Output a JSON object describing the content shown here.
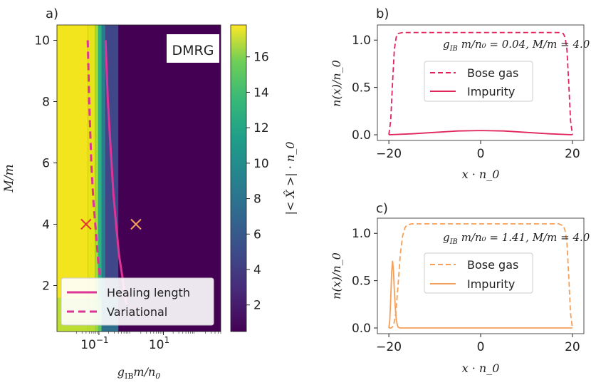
{
  "colors": {
    "pink": "#dd3497",
    "crimson": "#e0245c",
    "orange": "#f5a05a",
    "marker_red": "#e8333a",
    "marker_orange": "#f5a05a"
  },
  "chart_data": [
    {
      "id": "a",
      "type": "heatmap",
      "panel_label": "a)",
      "badge": "DMRG",
      "xlabel": "g_IB m/n_0",
      "xlabel_main": "g",
      "xlabel_sub": "IB",
      "xlabel_rest": "m/n",
      "xlabel_rest_sub": "0",
      "ylabel": "M/m",
      "xscale": "log",
      "xlim": [
        0.005,
        600
      ],
      "ylim": [
        0.5,
        10.5
      ],
      "xticks": [
        {
          "value": 0.1,
          "base": "10",
          "exp": "−1"
        },
        {
          "value": 10,
          "base": "10",
          "exp": "1"
        }
      ],
      "yticks": [
        {
          "value": 2,
          "label": "2"
        },
        {
          "value": 4,
          "label": "4"
        },
        {
          "value": 6,
          "label": "6"
        },
        {
          "value": 8,
          "label": "8"
        },
        {
          "value": 10,
          "label": "10"
        }
      ],
      "colorbar": {
        "label": "|< X̂ >| · n_0",
        "range": [
          0.5,
          17.8
        ],
        "ticks": [
          {
            "value": 2,
            "label": "2"
          },
          {
            "value": 4,
            "label": "4"
          },
          {
            "value": 6,
            "label": "6"
          },
          {
            "value": 8,
            "label": "8"
          },
          {
            "value": 10,
            "label": "10"
          },
          {
            "value": 12,
            "label": "12"
          },
          {
            "value": 14,
            "label": "14"
          },
          {
            "value": 16,
            "label": "16"
          }
        ]
      },
      "series": [
        {
          "name": "Healing length",
          "style": "solid",
          "color": "#dd3497",
          "x": [
            0.16,
            0.19,
            0.23,
            0.28,
            0.34,
            0.42,
            0.55,
            0.7
          ],
          "y": [
            10.0,
            8.0,
            6.5,
            5.0,
            4.0,
            3.0,
            2.2,
            1.4
          ]
        },
        {
          "name": "Variational",
          "style": "dashed",
          "color": "#dd3497",
          "x": [
            0.045,
            0.05,
            0.058,
            0.068,
            0.08,
            0.095,
            0.11
          ],
          "y": [
            10.0,
            8.0,
            6.0,
            4.7,
            3.8,
            2.8,
            2.2
          ]
        }
      ],
      "markers": [
        {
          "x": 0.04,
          "y": 4.0,
          "color": "#e8333a",
          "symbol": "x"
        },
        {
          "x": 1.41,
          "y": 4.0,
          "color": "#f5a05a",
          "symbol": "x"
        }
      ]
    },
    {
      "id": "b",
      "type": "line",
      "panel_label": "b)",
      "annotation": "g_IB m/n_0 = 0.04, M/m = 4.0",
      "annotation_g": "0.04",
      "annotation_M": "4.0",
      "xlabel": "x · n_0",
      "ylabel": "n(x)/n_0",
      "xlim": [
        -22.5,
        22.5
      ],
      "ylim": [
        -0.06,
        1.16
      ],
      "xticks": [
        {
          "value": -20,
          "label": "−20"
        },
        {
          "value": 0,
          "label": "0"
        },
        {
          "value": 20,
          "label": "20"
        }
      ],
      "yticks": [
        {
          "value": 0,
          "label": "0.0"
        },
        {
          "value": 0.5,
          "label": "0.5"
        },
        {
          "value": 1.0,
          "label": "1.0"
        }
      ],
      "color": "#e0245c",
      "series": [
        {
          "name": "Bose gas",
          "style": "dashed",
          "x": [
            -20,
            -19.6,
            -19.2,
            -18.8,
            -18.4,
            -18,
            -17,
            -15,
            -10,
            0,
            10,
            15,
            17,
            18,
            18.4,
            18.8,
            19.2,
            19.6,
            20
          ],
          "y": [
            0,
            0.15,
            0.55,
            0.9,
            1.03,
            1.07,
            1.08,
            1.08,
            1.08,
            1.08,
            1.08,
            1.08,
            1.08,
            1.07,
            1.03,
            0.9,
            0.55,
            0.15,
            0
          ]
        },
        {
          "name": "Impurity",
          "style": "solid",
          "x": [
            -20,
            -15,
            -10,
            -5,
            0,
            5,
            10,
            15,
            20
          ],
          "y": [
            0.0,
            0.01,
            0.025,
            0.04,
            0.045,
            0.04,
            0.025,
            0.01,
            0.0
          ]
        }
      ]
    },
    {
      "id": "c",
      "type": "line",
      "panel_label": "c)",
      "annotation": "g_IB m/n_0 = 1.41, M/m = 4.0",
      "annotation_g": "1.41",
      "annotation_M": "4.0",
      "xlabel": "x · n_0",
      "ylabel": "n(x)/n_0",
      "xlim": [
        -22.5,
        22.5
      ],
      "ylim": [
        -0.06,
        1.16
      ],
      "xticks": [
        {
          "value": -20,
          "label": "−20"
        },
        {
          "value": 0,
          "label": "0"
        },
        {
          "value": 20,
          "label": "20"
        }
      ],
      "yticks": [
        {
          "value": 0,
          "label": "0.0"
        },
        {
          "value": 0.5,
          "label": "0.5"
        },
        {
          "value": 1.0,
          "label": "1.0"
        }
      ],
      "color": "#f5a05a",
      "series": [
        {
          "name": "Bose gas",
          "style": "dashed",
          "x": [
            -20,
            -19.5,
            -19,
            -18.5,
            -18,
            -17.5,
            -17,
            -16.5,
            -16,
            -15,
            -13,
            -10,
            0,
            10,
            15,
            17,
            18,
            18.4,
            18.8,
            19.2,
            19.6,
            20
          ],
          "y": [
            0,
            0,
            0.02,
            0.15,
            0.45,
            0.78,
            0.97,
            1.06,
            1.09,
            1.1,
            1.1,
            1.1,
            1.1,
            1.1,
            1.1,
            1.1,
            1.08,
            1.03,
            0.9,
            0.55,
            0.15,
            0
          ]
        },
        {
          "name": "Impurity",
          "style": "solid",
          "x": [
            -20,
            -19.8,
            -19.6,
            -19.4,
            -19.2,
            -19.0,
            -18.8,
            -18.6,
            -18.4,
            -18.2,
            -18.0,
            -17.6,
            -17,
            -10,
            0,
            10,
            20
          ],
          "y": [
            0,
            0.08,
            0.3,
            0.58,
            0.71,
            0.6,
            0.4,
            0.22,
            0.1,
            0.04,
            0.01,
            0,
            0,
            0,
            0,
            0,
            0
          ]
        }
      ]
    }
  ]
}
